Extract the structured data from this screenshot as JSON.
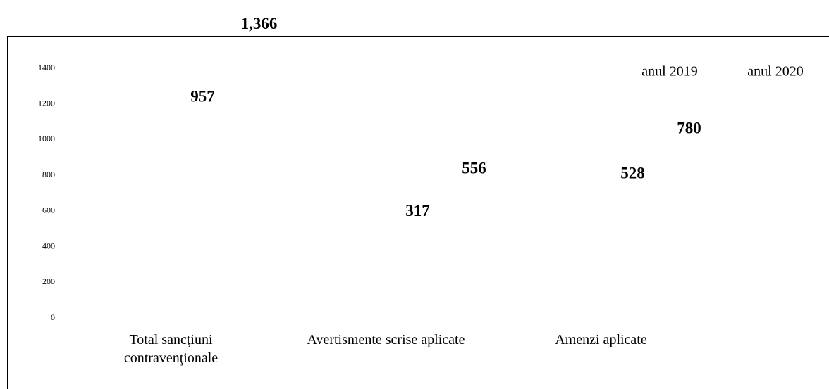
{
  "chart_data": {
    "type": "bar",
    "categories": [
      "Total sancţiuni contravenţionale",
      "Avertismente scrise aplicate",
      "Amenzi aplicate"
    ],
    "series": [
      {
        "name": "anul 2019",
        "values": [
          957,
          317,
          528
        ]
      },
      {
        "name": "anul 2020",
        "values": [
          1366,
          556,
          780
        ],
        "value_labels": [
          "1,366",
          "556",
          "780"
        ]
      }
    ],
    "ylim": [
      0,
      1400
    ],
    "yticks": [
      0,
      200,
      400,
      600,
      800,
      1000,
      1200,
      1400
    ]
  }
}
